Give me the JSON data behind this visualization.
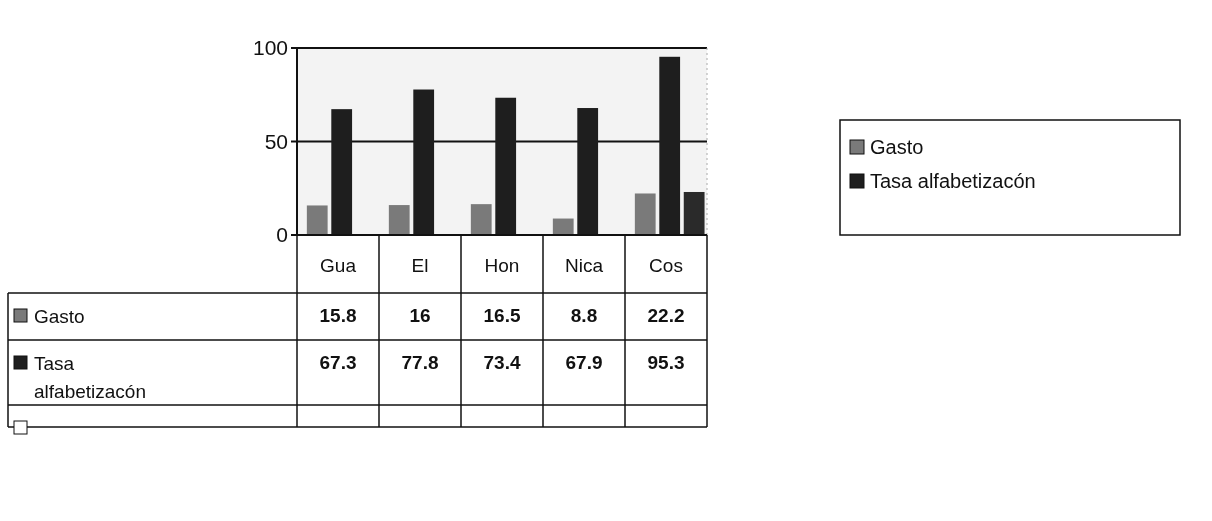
{
  "chart_data": {
    "type": "bar",
    "categories": [
      "Gua",
      "El",
      "Hon",
      "Nica",
      "Cos"
    ],
    "series": [
      {
        "name": "Gasto",
        "color": "#7a7a7a",
        "values": [
          15.8,
          16,
          16.5,
          8.8,
          22.2
        ],
        "value_labels": [
          "15.8",
          "16",
          "16.5",
          "8.8",
          "22.2"
        ]
      },
      {
        "name": "Tasa alfabetizacón",
        "color": "#1e1e1e",
        "values": [
          67.3,
          77.8,
          73.4,
          67.9,
          95.3
        ],
        "value_labels": [
          "67.3",
          "77.8",
          "73.4",
          "67.9",
          "95.3"
        ]
      },
      {
        "color": "#2a2a2a",
        "values": [
          null,
          null,
          null,
          null,
          23
        ]
      }
    ],
    "ylim": [
      0,
      100
    ],
    "yticks": [
      0,
      50,
      100
    ],
    "grid": "y",
    "legend": "right"
  }
}
